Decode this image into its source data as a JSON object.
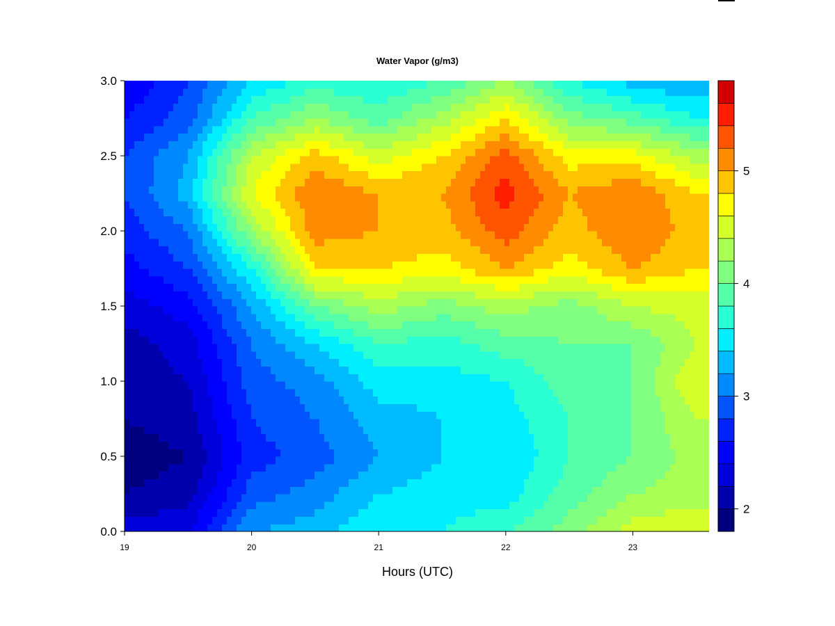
{
  "chart_data": {
    "type": "heatmap",
    "subtype": "filled-contour",
    "title": "Water Vapor (g/m3)",
    "xlabel": "Hours (UTC)",
    "ylabel": "",
    "xlim": [
      19,
      23.6
    ],
    "ylim": [
      0,
      3
    ],
    "x_ticks": [
      "19",
      "20",
      "21",
      "22",
      "23"
    ],
    "y_ticks": [
      "0.0",
      "0.5",
      "1.0",
      "1.5",
      "2.0",
      "2.5",
      "3.0"
    ],
    "colorbar": {
      "min": 1.8,
      "max": 5.8,
      "levels": [
        1.8,
        2.0,
        2.2,
        2.4,
        2.6,
        2.8,
        3.0,
        3.2,
        3.4,
        3.6,
        3.8,
        4.0,
        4.2,
        4.4,
        4.6,
        4.8,
        5.0,
        5.2,
        5.4,
        5.6,
        5.8
      ],
      "ticks": [
        "2",
        "3",
        "4",
        "5"
      ],
      "colors": [
        "#00007f",
        "#0000ad",
        "#0000db",
        "#0000ff",
        "#0022ff",
        "#0055ff",
        "#0088ff",
        "#00bbff",
        "#00eeff",
        "#2bffd4",
        "#55ffaa",
        "#80ff80",
        "#aaff55",
        "#d4ff2b",
        "#ffff00",
        "#ffc400",
        "#ff8c00",
        "#ff5500",
        "#ff1e00",
        "#d20000",
        "#800000"
      ]
    },
    "x": [
      19.0,
      19.5,
      20.0,
      20.5,
      21.0,
      21.5,
      22.0,
      22.5,
      23.0,
      23.5
    ],
    "y": [
      0.0,
      0.25,
      0.5,
      0.75,
      1.0,
      1.25,
      1.5,
      1.75,
      2.0,
      2.25,
      2.5,
      2.75,
      3.0
    ],
    "z": [
      [
        2.3,
        2.4,
        3.2,
        3.3,
        3.6,
        3.6,
        3.8,
        4.1,
        4.5,
        4.6
      ],
      [
        2.0,
        2.1,
        2.9,
        3.1,
        3.4,
        3.5,
        3.5,
        3.9,
        4.2,
        4.3
      ],
      [
        1.9,
        2.0,
        2.7,
        2.9,
        3.2,
        3.4,
        3.4,
        3.8,
        4.0,
        4.3
      ],
      [
        2.0,
        2.1,
        2.8,
        3.0,
        3.3,
        3.4,
        3.5,
        3.8,
        4.0,
        4.4
      ],
      [
        2.1,
        2.2,
        2.9,
        3.1,
        3.5,
        3.5,
        3.6,
        3.9,
        4.0,
        4.6
      ],
      [
        2.1,
        2.3,
        3.0,
        3.4,
        3.8,
        3.7,
        3.9,
        4.0,
        4.0,
        4.4
      ],
      [
        2.3,
        2.5,
        3.2,
        4.0,
        4.3,
        4.1,
        4.3,
        4.1,
        4.4,
        4.5
      ],
      [
        2.5,
        2.8,
        3.6,
        4.8,
        4.8,
        4.7,
        5.0,
        4.7,
        5.0,
        4.8
      ],
      [
        2.7,
        3.0,
        4.2,
        5.1,
        5.0,
        4.9,
        5.3,
        4.9,
        5.2,
        4.9
      ],
      [
        2.8,
        3.3,
        4.6,
        5.2,
        5.0,
        5.0,
        5.5,
        5.0,
        5.2,
        4.8
      ],
      [
        2.8,
        3.2,
        4.4,
        4.9,
        4.5,
        4.8,
        5.3,
        4.7,
        4.7,
        4.3
      ],
      [
        2.6,
        2.9,
        3.8,
        4.2,
        3.9,
        4.3,
        4.8,
        4.1,
        3.9,
        3.6
      ],
      [
        2.4,
        2.8,
        3.4,
        3.7,
        3.6,
        3.8,
        4.2,
        3.6,
        3.3,
        3.2
      ]
    ]
  }
}
